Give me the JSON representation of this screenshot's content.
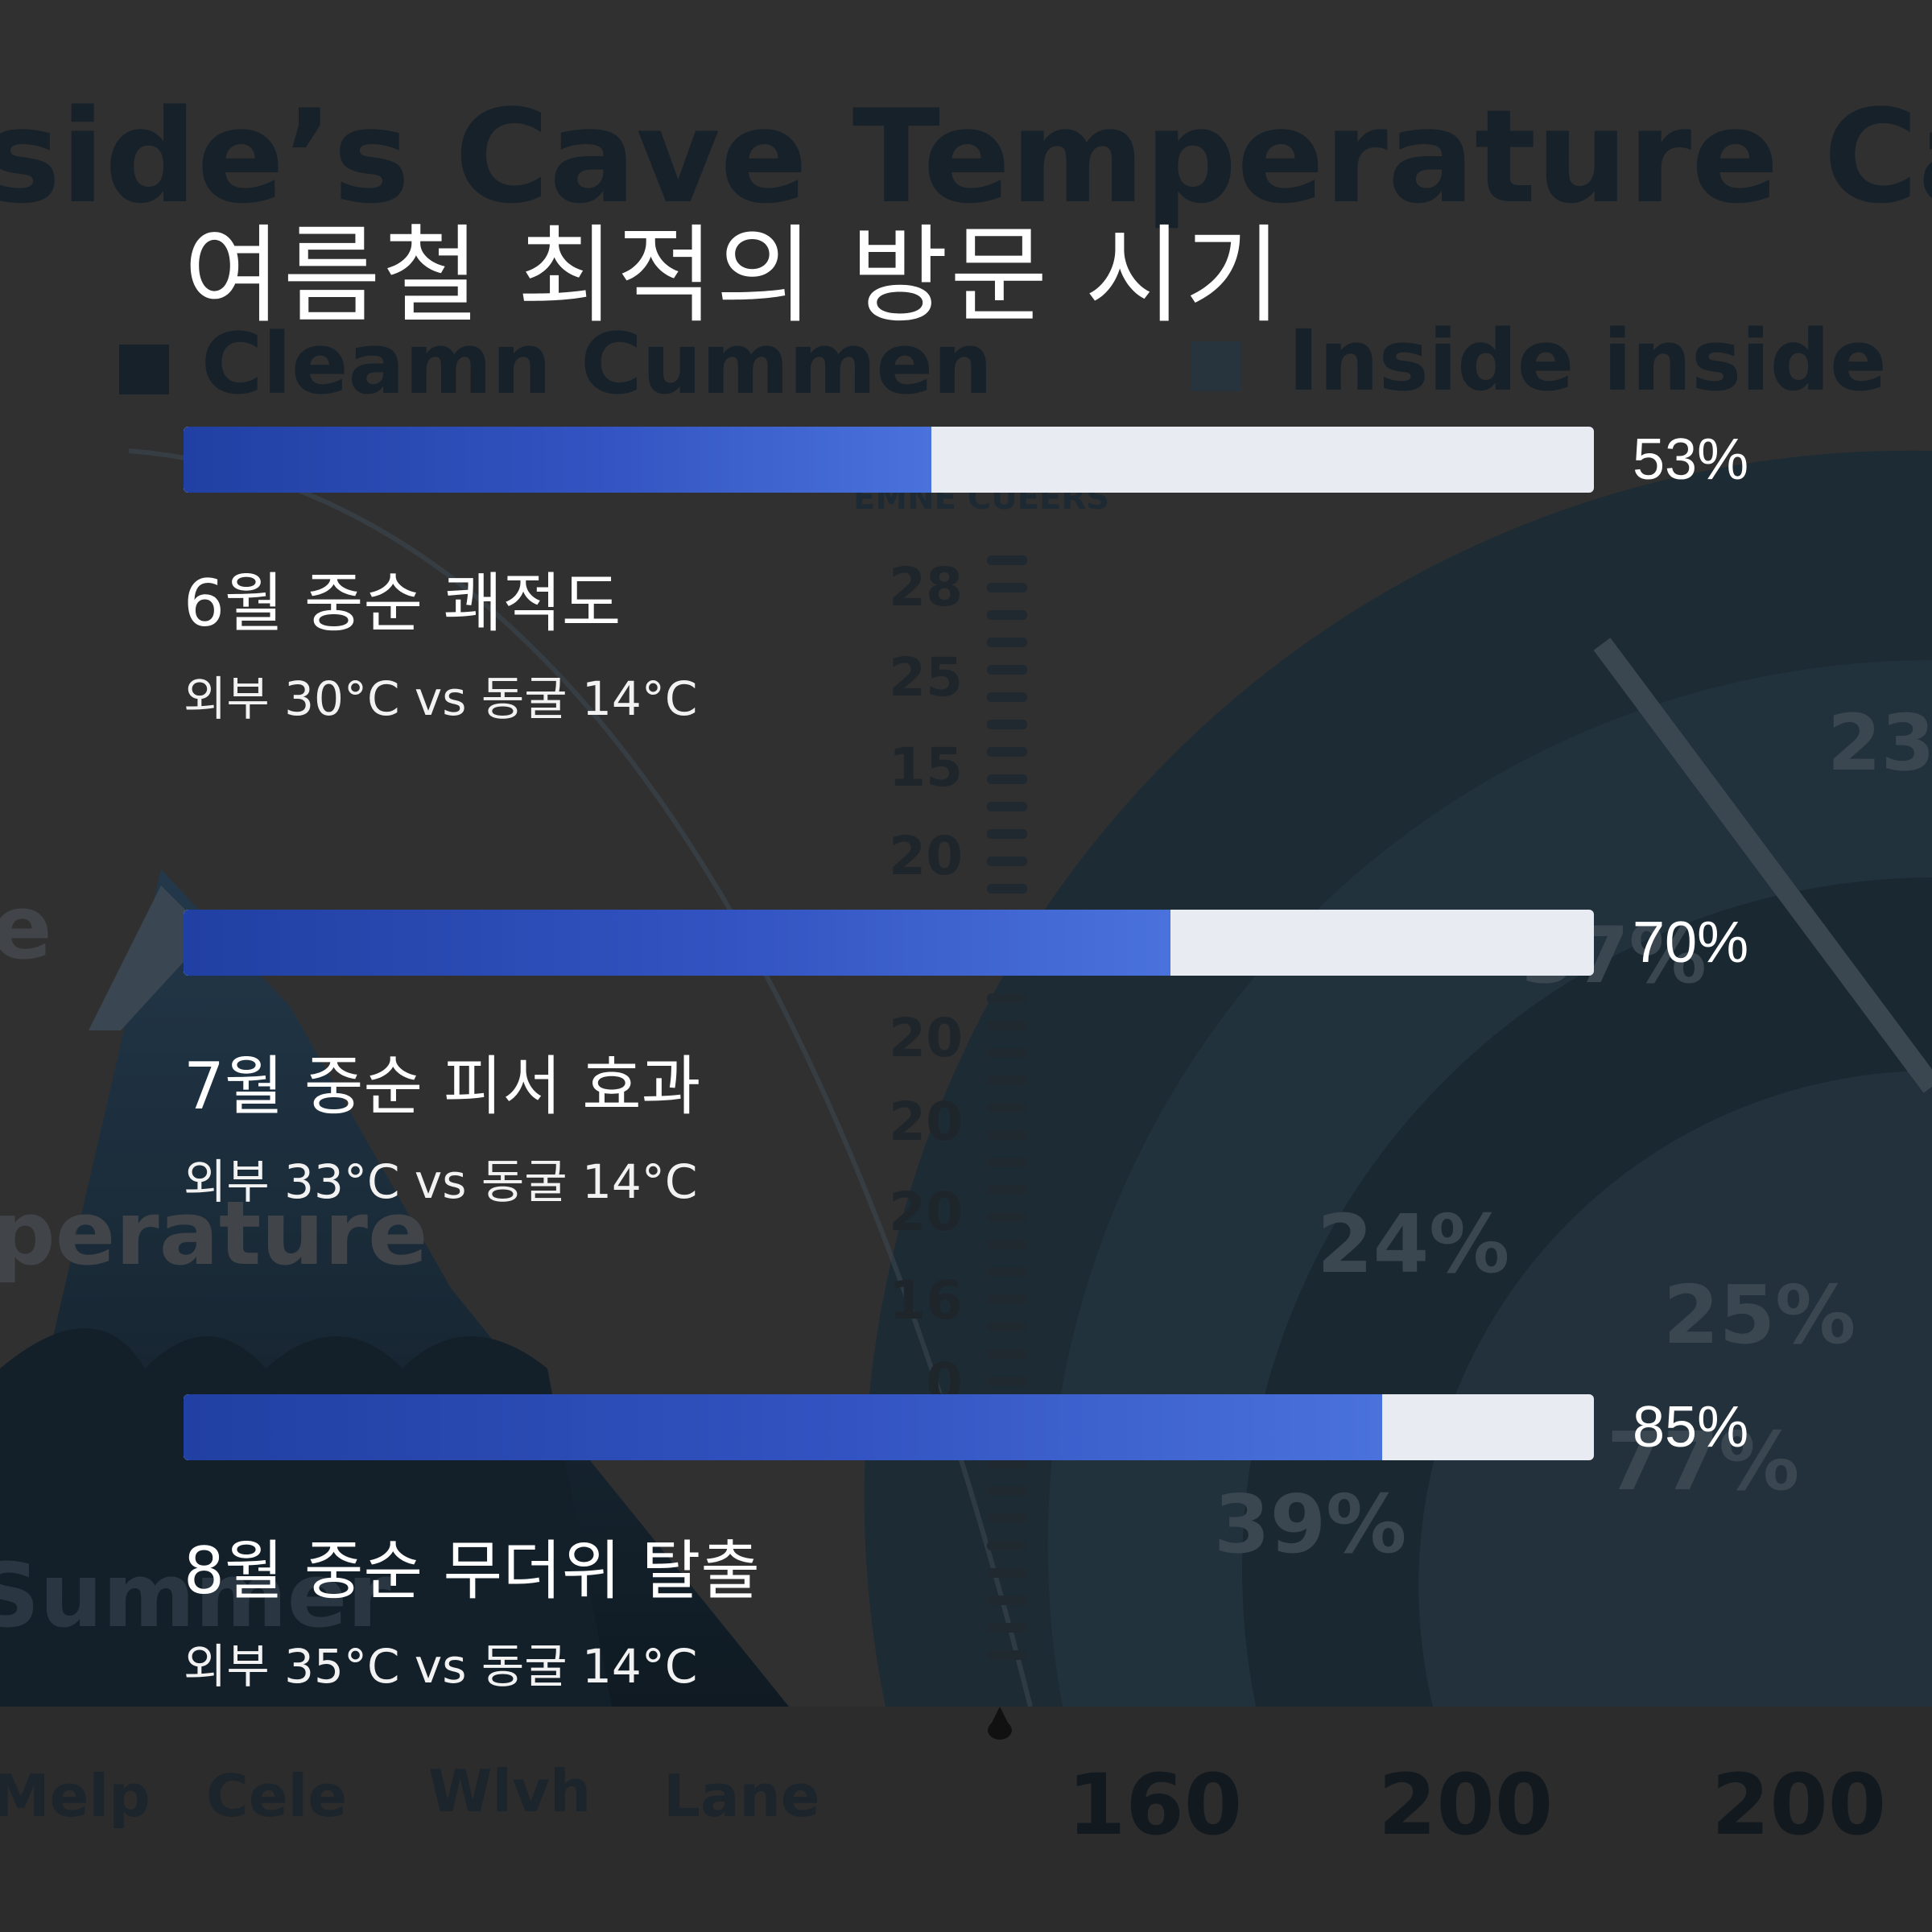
{
  "background": {
    "title": "side’s Cave Temperature Campart",
    "legend": [
      "Cleamn Cummen",
      "Inside inside"
    ],
    "scale_label": "EMNE CUEERS",
    "scale_ticks": [
      "28",
      "25",
      "15",
      "20",
      "20",
      "20",
      "20",
      "16",
      "0"
    ],
    "side_words": [
      "e",
      "perature",
      "Summer"
    ],
    "ring_pcts": [
      "23",
      "37%",
      "24%",
      "25%",
      "39%",
      "77%"
    ],
    "bottom_labels": [
      "Melp",
      "Cele",
      "Wlvh",
      "Lane"
    ],
    "bottom_numbers": [
      "160",
      "200",
      "200"
    ]
  },
  "headline": "여름철 최적의 방문 시기",
  "chart_data": {
    "type": "bar",
    "orientation": "horizontal",
    "title": "여름철 최적의 방문 시기",
    "ylim": [
      0,
      100
    ],
    "categories": [
      "6월 중순 쾌적도",
      "7월 중순 피서 효과",
      "8월 중순 무더위 탈출"
    ],
    "values": [
      53,
      70,
      85
    ],
    "value_labels": [
      "53%",
      "70%",
      "85%"
    ],
    "subtitles": [
      "외부 30°C vs 동굴 14°C",
      "외부 33°C vs 동굴 14°C",
      "외부 35°C vs 동굴 14°C"
    ]
  },
  "colors": {
    "bar_start": "#2140a3",
    "bar_end": "#4a72dc",
    "track": "#e9ebf3",
    "text": "#ffffff",
    "background": "#303030"
  }
}
